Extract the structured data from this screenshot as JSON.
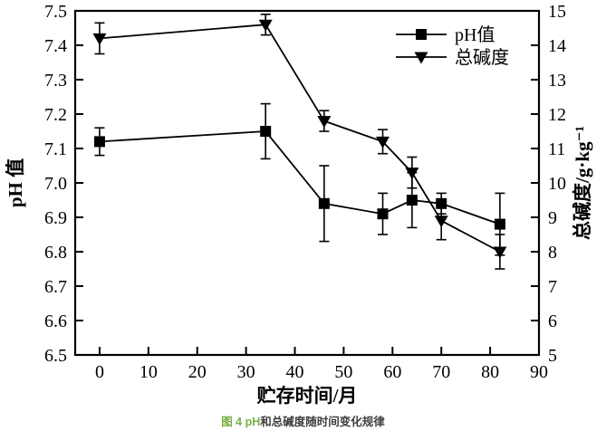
{
  "figure": {
    "caption_highlight": "图 4 pH",
    "caption_rest": "和总碱度随时间变化规律",
    "caption_highlight_color": "#76b043",
    "caption_text_color": "#3d3d3d"
  },
  "chart_data": {
    "type": "line",
    "title": "图4 pH和总碱度随时间变化规律",
    "x": [
      0,
      34,
      46,
      58,
      64,
      70,
      82
    ],
    "xlabel": "贮存时间/月",
    "xlim": [
      -5,
      90
    ],
    "x_ticks": [
      0,
      10,
      20,
      30,
      40,
      50,
      60,
      70,
      80,
      90
    ],
    "grid": false,
    "legend_position": "top-right-inside",
    "line_color": "#000000",
    "left_axis": {
      "label": "pH 值",
      "lim": [
        6.5,
        7.5
      ],
      "tick_labels": [
        "6.5",
        "6.6",
        "6.7",
        "6.8",
        "6.9",
        "7.0",
        "7.1",
        "7.2",
        "7.3",
        "7.4",
        "7.5"
      ]
    },
    "right_axis": {
      "label": "总碱度/g·kg⁻¹",
      "lim": [
        5,
        15
      ],
      "ticks": [
        5,
        6,
        7,
        8,
        9,
        10,
        11,
        12,
        13,
        14,
        15
      ]
    },
    "series": [
      {
        "id": "ph",
        "name": "pH值",
        "axis": "left",
        "marker": "square",
        "values": [
          7.12,
          7.15,
          6.94,
          6.91,
          6.95,
          6.94,
          6.88
        ],
        "errors": [
          0.04,
          0.08,
          0.11,
          0.06,
          0.08,
          0.03,
          0.09
        ]
      },
      {
        "id": "alkalinity",
        "name": "总碱度",
        "axis": "right",
        "marker": "triangle-down",
        "values": [
          14.2,
          14.6,
          11.8,
          11.2,
          10.3,
          8.9,
          8.0
        ],
        "errors": [
          0.45,
          0.3,
          0.3,
          0.35,
          0.45,
          0.55,
          0.5
        ]
      }
    ]
  }
}
